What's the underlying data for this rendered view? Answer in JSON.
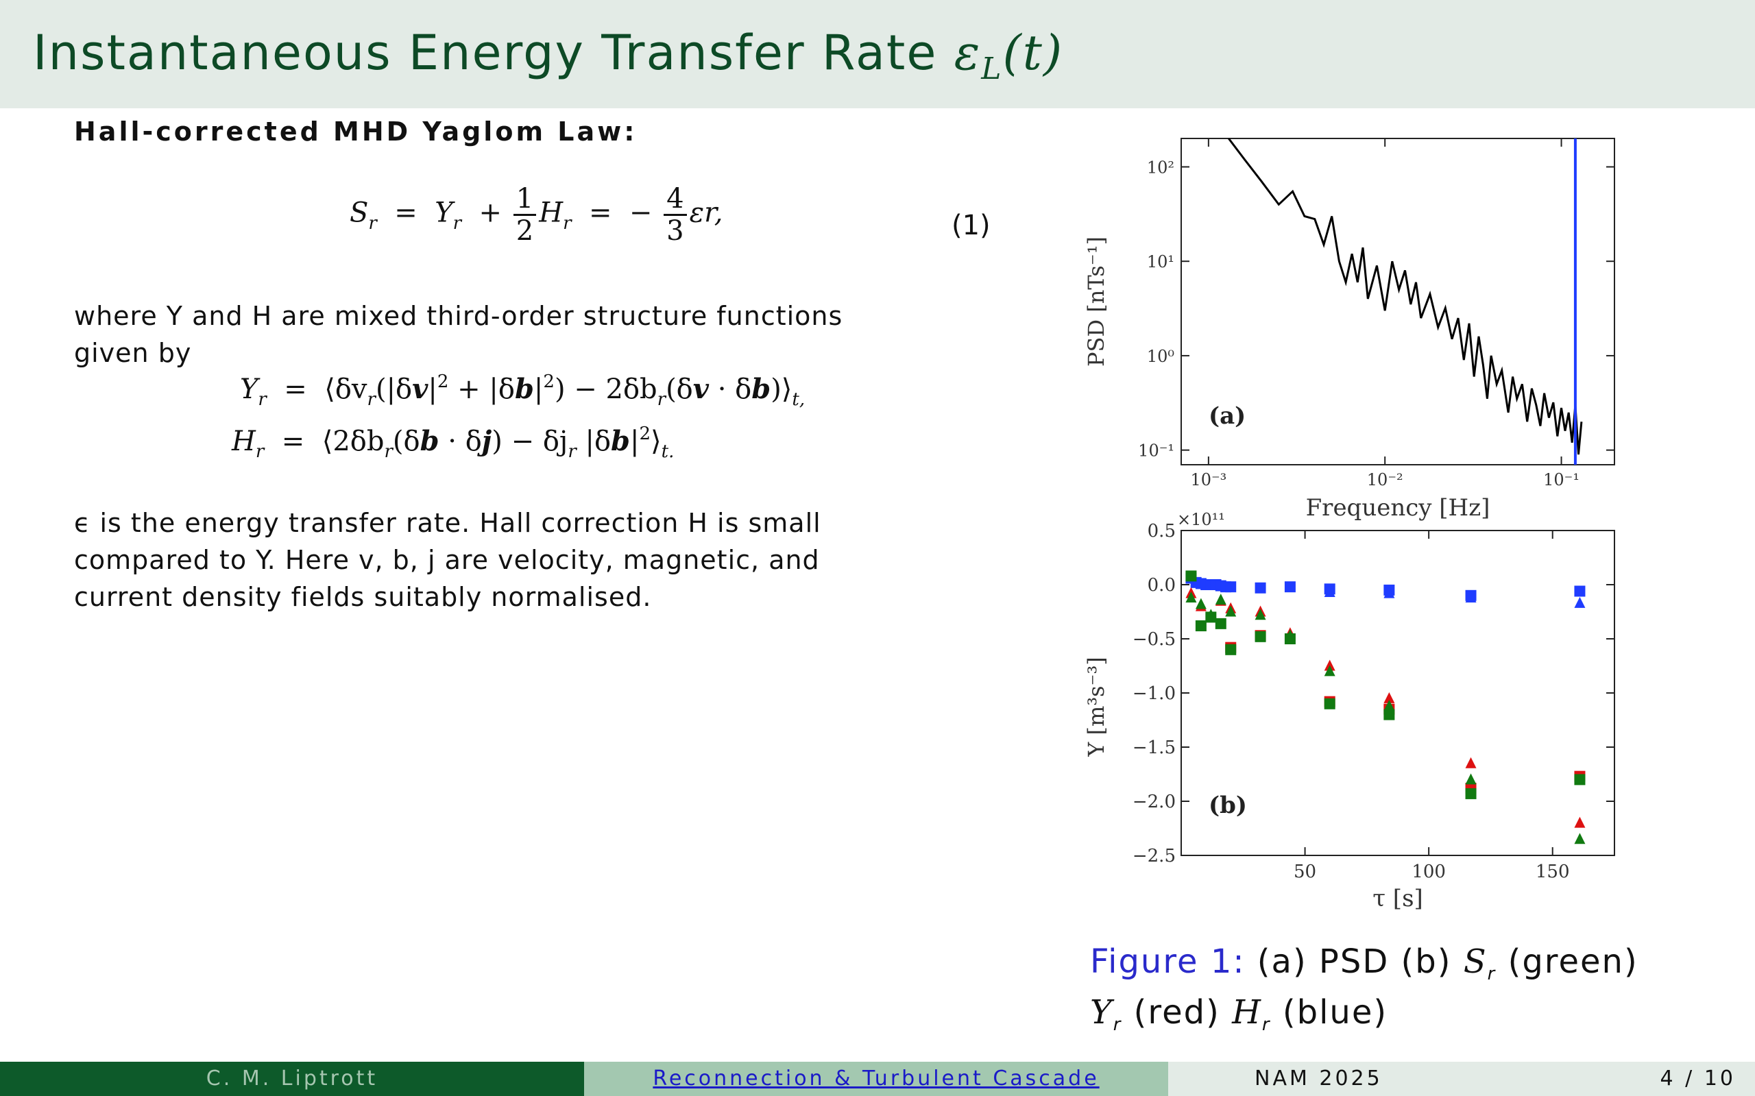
{
  "header": {
    "title_text": "Instantaneous Energy Transfer Rate",
    "title_math": "ε",
    "title_sub": "L",
    "title_arg": "(t)"
  },
  "section": {
    "heading": "Hall-corrected MHD Yaglom Law:"
  },
  "equation1": {
    "lhs": "S",
    "eq1": "=",
    "Y": "Y",
    "plus": "+",
    "half_num": "1",
    "half_den": "2",
    "H": "H",
    "eq2": "=",
    "minus": "−",
    "four_num": "4",
    "four_den": "3",
    "tail": "εr,",
    "sub_r": "r",
    "number": "(1)"
  },
  "paragraph1": {
    "text": "where Y and H are mixed third-order structure functions given by"
  },
  "equation2": {
    "Y_lhs": "Y",
    "sub": "r",
    "eq": "=",
    "Y_rhs_a": "⟨δv",
    "Y_rhs_b": "(|δ",
    "v": "v",
    "Y_rhs_c": "|",
    "sq": "2",
    "Y_rhs_d": " + |δ",
    "b": "b",
    "Y_rhs_e": "|",
    "Y_rhs_f": ") − 2δb",
    "Y_rhs_g": "(δ",
    "Y_rhs_h": " · δ",
    "Y_rhs_i": ")⟩",
    "t_sub": "t,"
  },
  "equation3": {
    "H_lhs": "H",
    "sub": "r",
    "eq": "=",
    "H_rhs_a": "⟨2δb",
    "H_rhs_b": "(δ",
    "b": "b",
    "H_rhs_c": " · δ",
    "j": "j",
    "H_rhs_d": ") − δj",
    "H_rhs_e": " |δ",
    "H_rhs_f": "|",
    "sq": "2",
    "H_rhs_g": "⟩",
    "t_sub": "t."
  },
  "paragraph2": {
    "text": "ϵ is the energy transfer rate. Hall correction H is small compared to Y. Here v, b, j are velocity, magnetic, and current density fields suitably normalised."
  },
  "figure": {
    "caption_label": "Figure 1:",
    "caption_text_a": "(a) PSD (b)",
    "caption_S": "S",
    "caption_text_b": "(green)",
    "caption_Y": "Y",
    "caption_text_c": "(red)",
    "caption_H": "H",
    "caption_text_d": "(blue)",
    "sub_r": "r"
  },
  "chart_data": [
    {
      "type": "line",
      "panel_label": "(a)",
      "xlabel": "Frequency [Hz]",
      "ylabel": "PSD [nTs⁻¹]",
      "xscale": "log",
      "yscale": "log",
      "xlim": [
        0.0007,
        0.2
      ],
      "ylim": [
        0.07,
        200
      ],
      "xticks": [
        "10⁻³",
        "10⁻²",
        "10⁻¹"
      ],
      "yticks": [
        "10⁻¹",
        "10⁰",
        "10¹",
        "10²"
      ],
      "vline": {
        "x": 0.12,
        "color": "#1f3cff"
      },
      "series": [
        {
          "color": "#000000",
          "x": [
            0.0013,
            0.0016,
            0.002,
            0.0025,
            0.003,
            0.0035,
            0.004,
            0.0045,
            0.005,
            0.0055,
            0.006,
            0.0065,
            0.007,
            0.0075,
            0.008,
            0.009,
            0.01,
            0.011,
            0.012,
            0.013,
            0.014,
            0.015,
            0.016,
            0.018,
            0.02,
            0.022,
            0.024,
            0.026,
            0.028,
            0.03,
            0.032,
            0.034,
            0.036,
            0.038,
            0.04,
            0.043,
            0.046,
            0.05,
            0.053,
            0.056,
            0.06,
            0.064,
            0.068,
            0.072,
            0.076,
            0.08,
            0.085,
            0.09,
            0.095,
            0.1,
            0.105,
            0.11,
            0.115,
            0.12,
            0.125,
            0.13
          ],
          "y": [
            200,
            120,
            70,
            40,
            55,
            30,
            28,
            15,
            30,
            10,
            6,
            12,
            6,
            14,
            4,
            9,
            3,
            10,
            5,
            8,
            3.5,
            6,
            2.5,
            4.5,
            2,
            3.2,
            1.5,
            2.5,
            0.9,
            2.2,
            0.6,
            1.6,
            0.8,
            0.35,
            1.0,
            0.5,
            0.7,
            0.25,
            0.6,
            0.35,
            0.5,
            0.2,
            0.45,
            0.3,
            0.18,
            0.4,
            0.22,
            0.32,
            0.14,
            0.28,
            0.16,
            0.25,
            0.12,
            0.3,
            0.09,
            0.2
          ]
        }
      ]
    },
    {
      "type": "scatter",
      "panel_label": "(b)",
      "xlabel": "τ [s]",
      "ylabel": "Y [m³s⁻³]",
      "y_multiplier": "×10¹¹",
      "xlim": [
        0,
        175
      ],
      "ylim": [
        -2.5,
        0.5
      ],
      "xticks": [
        "50",
        "100",
        "150"
      ],
      "yticks": [
        "0.5",
        "0.0",
        "−0.5",
        "−1.0",
        "−1.5",
        "−2.0",
        "−2.5"
      ],
      "series": [
        {
          "name": "H (blue, squares)",
          "color": "#1f3cff",
          "marker": "square",
          "x": [
            4,
            6,
            8,
            10,
            12,
            14,
            16,
            18,
            20,
            32,
            44,
            60,
            84,
            117,
            161
          ],
          "y": [
            0.06,
            0.02,
            0.01,
            0.0,
            0.0,
            0.0,
            -0.01,
            -0.02,
            -0.02,
            -0.03,
            -0.02,
            -0.04,
            -0.05,
            -0.1,
            -0.06
          ]
        },
        {
          "name": "H (blue, triangles)",
          "color": "#1f3cff",
          "marker": "triangle",
          "x": [
            60,
            84,
            117,
            161
          ],
          "y": [
            -0.07,
            -0.08,
            -0.12,
            -0.17
          ]
        },
        {
          "name": "Y (red, triangles)",
          "color": "#dd1111",
          "marker": "triangle",
          "x": [
            4,
            8,
            12,
            16,
            20,
            32,
            44,
            60,
            84,
            117,
            161
          ],
          "y": [
            -0.08,
            -0.2,
            -0.3,
            -0.15,
            -0.22,
            -0.25,
            -0.45,
            -0.75,
            -1.05,
            -1.65,
            -2.2
          ]
        },
        {
          "name": "Y (red, squares)",
          "color": "#dd1111",
          "marker": "square",
          "x": [
            20,
            32,
            60,
            84,
            117,
            161
          ],
          "y": [
            -0.58,
            -0.47,
            -1.08,
            -1.15,
            -1.88,
            -1.77
          ]
        },
        {
          "name": "S (green, squares)",
          "color": "#117a11",
          "marker": "square",
          "x": [
            4,
            8,
            12,
            16,
            20,
            32,
            44,
            60,
            84,
            117,
            161
          ],
          "y": [
            0.08,
            -0.38,
            -0.3,
            -0.36,
            -0.6,
            -0.48,
            -0.5,
            -1.1,
            -1.2,
            -1.93,
            -1.8
          ]
        },
        {
          "name": "S (green, triangles)",
          "color": "#117a11",
          "marker": "triangle",
          "x": [
            4,
            8,
            12,
            16,
            20,
            32,
            44,
            60,
            84,
            117,
            161
          ],
          "y": [
            -0.12,
            -0.18,
            -0.28,
            -0.14,
            -0.25,
            -0.28,
            -0.47,
            -0.8,
            -1.12,
            -1.8,
            -2.35
          ]
        }
      ]
    }
  ],
  "footer": {
    "author": "C. M. Liptrott",
    "talk_title": "Reconnection & Turbulent Cascade",
    "conference": "NAM 2025",
    "page": "4 / 10"
  }
}
